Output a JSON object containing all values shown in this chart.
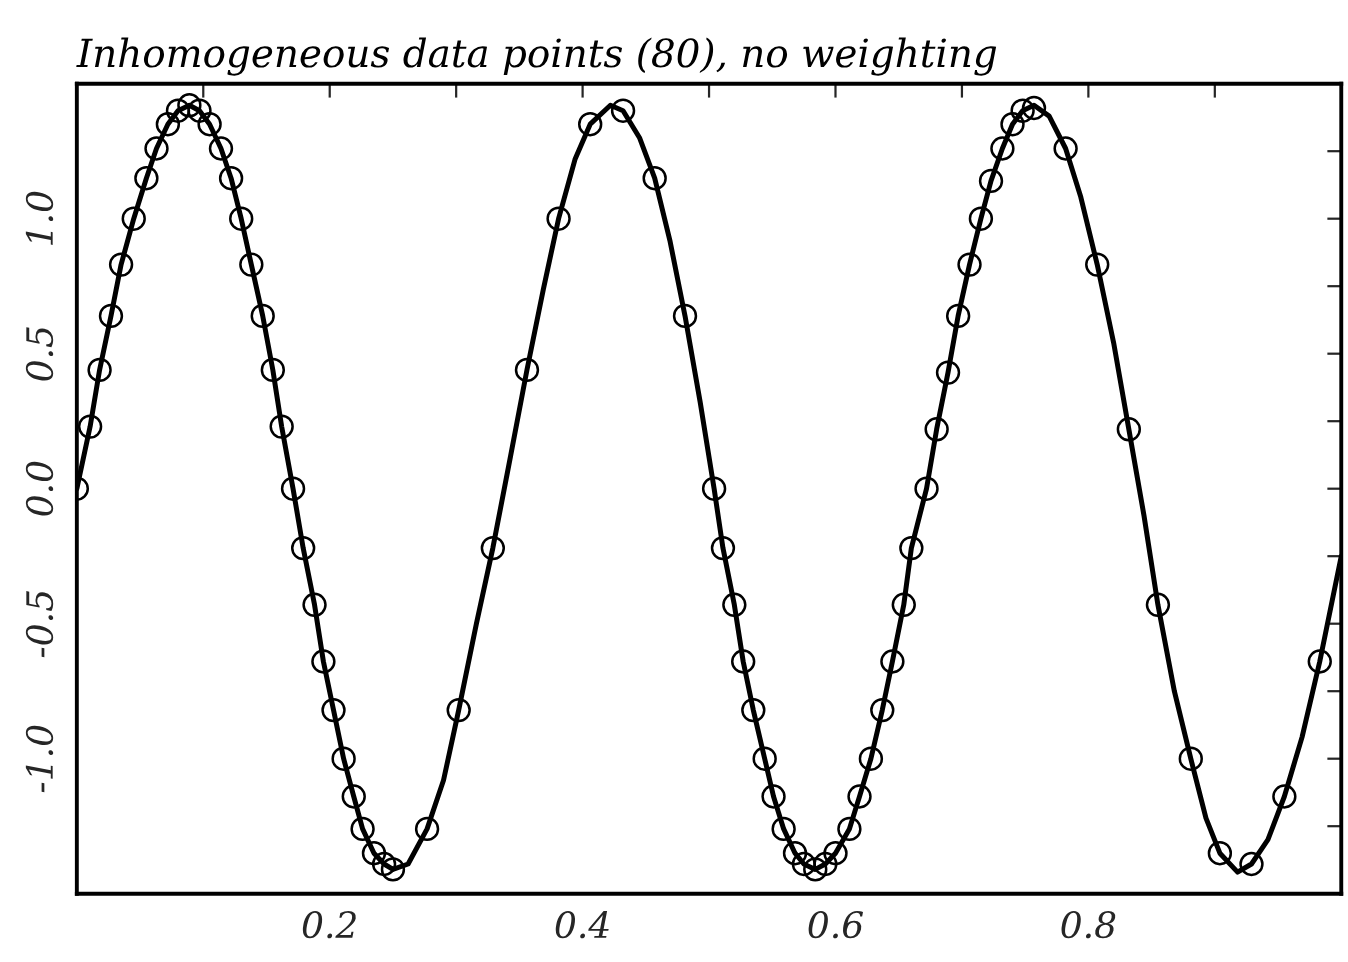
{
  "chart_data": {
    "type": "scatter",
    "title": "Inhomogeneous data points (80), no weighting",
    "xlim": [
      0,
      1
    ],
    "ylim": [
      -1.5,
      1.5
    ],
    "xticks": [
      {
        "value": 0.1,
        "label": null
      },
      {
        "value": 0.2,
        "label": "0.2"
      },
      {
        "value": 0.3,
        "label": null
      },
      {
        "value": 0.4,
        "label": "0.4"
      },
      {
        "value": 0.5,
        "label": null
      },
      {
        "value": 0.6,
        "label": "0.6"
      },
      {
        "value": 0.7,
        "label": null
      },
      {
        "value": 0.8,
        "label": "0.8"
      },
      {
        "value": 0.9,
        "label": null
      }
    ],
    "yticks": [
      {
        "value": -1.25,
        "label": null
      },
      {
        "value": -1,
        "label": "-1.0"
      },
      {
        "value": -0.75,
        "label": null
      },
      {
        "value": -0.5,
        "label": "-0.5"
      },
      {
        "value": -0.25,
        "label": null
      },
      {
        "value": 0,
        "label": "0.0"
      },
      {
        "value": 0.25,
        "label": null
      },
      {
        "value": 0.5,
        "label": "0.5"
      },
      {
        "value": 0.75,
        "label": null
      },
      {
        "value": 1,
        "label": "1.0"
      },
      {
        "value": 1.25,
        "label": null
      }
    ],
    "marker": "circle",
    "grid": false,
    "legend": false,
    "series": [
      {
        "color": "#000000",
        "x": [
          0.0,
          0.0105,
          0.018,
          0.027,
          0.035,
          0.045,
          0.055,
          0.063,
          0.072,
          0.08,
          0.089,
          0.097,
          0.105,
          0.114,
          0.122,
          0.13,
          0.138,
          0.147,
          0.155,
          0.162,
          0.171,
          0.179,
          0.188,
          0.195,
          0.203,
          0.211,
          0.219,
          0.226,
          0.235,
          0.243,
          0.25,
          0.277,
          0.302,
          0.329,
          0.356,
          0.381,
          0.406,
          0.432,
          0.457,
          0.481,
          0.504,
          0.511,
          0.52,
          0.527,
          0.535,
          0.544,
          0.551,
          0.559,
          0.568,
          0.575,
          0.584,
          0.592,
          0.6,
          0.611,
          0.619,
          0.628,
          0.637,
          0.645,
          0.654,
          0.66,
          0.672,
          0.68,
          0.689,
          0.697,
          0.706,
          0.715,
          0.723,
          0.732,
          0.74,
          0.748,
          0.757,
          0.782,
          0.807,
          0.832,
          0.855,
          0.881,
          0.904,
          0.929,
          0.955,
          0.983
        ],
        "values": [
          0.0,
          0.23,
          0.44,
          0.64,
          0.83,
          1.0,
          1.15,
          1.26,
          1.35,
          1.4,
          1.42,
          1.4,
          1.35,
          1.26,
          1.15,
          1.0,
          0.83,
          0.64,
          0.44,
          0.23,
          0.0,
          -0.22,
          -0.43,
          -0.64,
          -0.82,
          -1.0,
          -1.14,
          -1.26,
          -1.35,
          -1.39,
          -1.41,
          -1.26,
          -0.82,
          -0.22,
          0.44,
          1.0,
          1.35,
          1.4,
          1.15,
          0.64,
          0.0,
          -0.22,
          -0.43,
          -0.64,
          -0.82,
          -1.0,
          -1.14,
          -1.26,
          -1.35,
          -1.39,
          -1.41,
          -1.39,
          -1.35,
          -1.26,
          -1.14,
          -1.0,
          -0.82,
          -0.64,
          -0.43,
          -0.22,
          0.0,
          0.22,
          0.43,
          0.64,
          0.83,
          1.0,
          1.14,
          1.26,
          1.35,
          1.4,
          1.41,
          1.26,
          0.83,
          0.22,
          -0.43,
          -1.0,
          -1.35,
          -1.39,
          -1.14,
          -0.64
        ]
      },
      {
        "type": "line",
        "color": "#000000",
        "marker": "none",
        "line_style": "solid",
        "x": [
          0.0,
          0.0105,
          0.018,
          0.027,
          0.035,
          0.045,
          0.055,
          0.063,
          0.072,
          0.08,
          0.089,
          0.097,
          0.105,
          0.114,
          0.122,
          0.13,
          0.138,
          0.147,
          0.155,
          0.162,
          0.171,
          0.179,
          0.188,
          0.195,
          0.203,
          0.211,
          0.219,
          0.226,
          0.235,
          0.243,
          0.25,
          0.262,
          0.277,
          0.29,
          0.302,
          0.316,
          0.329,
          0.343,
          0.356,
          0.369,
          0.381,
          0.394,
          0.406,
          0.422,
          0.432,
          0.445,
          0.457,
          0.469,
          0.481,
          0.493,
          0.504,
          0.511,
          0.52,
          0.527,
          0.535,
          0.544,
          0.551,
          0.559,
          0.568,
          0.575,
          0.584,
          0.592,
          0.6,
          0.611,
          0.619,
          0.628,
          0.637,
          0.645,
          0.654,
          0.66,
          0.672,
          0.68,
          0.689,
          0.697,
          0.706,
          0.715,
          0.723,
          0.732,
          0.74,
          0.748,
          0.757,
          0.769,
          0.782,
          0.794,
          0.807,
          0.82,
          0.832,
          0.844,
          0.855,
          0.868,
          0.881,
          0.893,
          0.904,
          0.918,
          0.929,
          0.942,
          0.955,
          0.969,
          0.983,
          1.0
        ],
        "values": [
          0.0,
          0.23,
          0.44,
          0.64,
          0.83,
          1.0,
          1.15,
          1.26,
          1.35,
          1.4,
          1.42,
          1.4,
          1.35,
          1.26,
          1.15,
          1.0,
          0.83,
          0.64,
          0.44,
          0.23,
          0.0,
          -0.22,
          -0.43,
          -0.64,
          -0.82,
          -1.0,
          -1.14,
          -1.26,
          -1.35,
          -1.39,
          -1.41,
          -1.39,
          -1.26,
          -1.08,
          -0.82,
          -0.5,
          -0.22,
          0.12,
          0.44,
          0.74,
          1.0,
          1.22,
          1.35,
          1.42,
          1.4,
          1.3,
          1.15,
          0.92,
          0.64,
          0.32,
          0.0,
          -0.22,
          -0.43,
          -0.64,
          -0.82,
          -1.0,
          -1.14,
          -1.26,
          -1.35,
          -1.39,
          -1.41,
          -1.39,
          -1.35,
          -1.26,
          -1.14,
          -1.0,
          -0.82,
          -0.64,
          -0.43,
          -0.22,
          0.0,
          0.22,
          0.43,
          0.64,
          0.83,
          1.0,
          1.14,
          1.26,
          1.35,
          1.4,
          1.42,
          1.38,
          1.26,
          1.08,
          0.83,
          0.54,
          0.22,
          -0.1,
          -0.43,
          -0.75,
          -1.0,
          -1.22,
          -1.35,
          -1.42,
          -1.39,
          -1.3,
          -1.14,
          -0.92,
          -0.64,
          -0.25
        ]
      }
    ]
  }
}
